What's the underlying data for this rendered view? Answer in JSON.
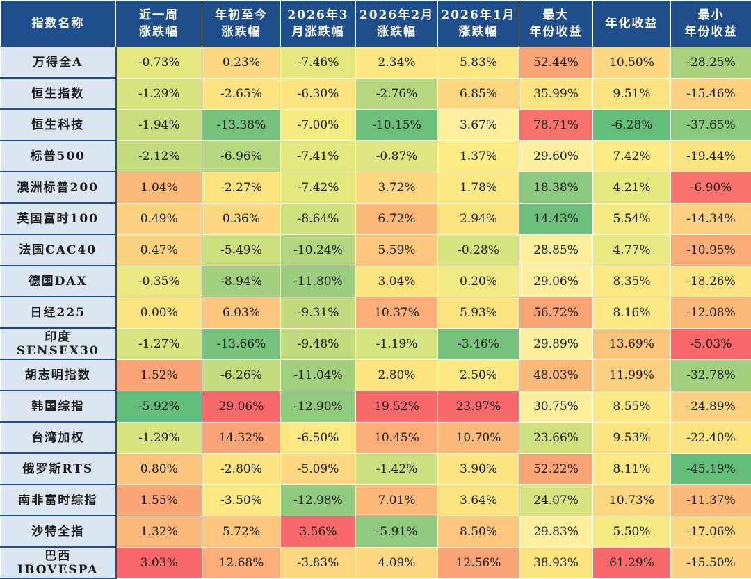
{
  "headers": [
    [
      "指数名称"
    ],
    [
      "近一周",
      "涨跌幅"
    ],
    [
      "年初至今",
      "涨跌幅"
    ],
    [
      "2026年3",
      "月涨跌幅"
    ],
    [
      "2026年2月",
      "涨跌幅"
    ],
    [
      "2026年1月",
      "涨跌幅"
    ],
    [
      "最大",
      "年份收益"
    ],
    [
      "年化收益"
    ],
    [
      "最小",
      "年份收益"
    ]
  ],
  "rows": [
    {
      "name": [
        "万得全A"
      ],
      "cells": [
        {
          "v": "-0.73%",
          "c": "#e3e87f"
        },
        {
          "v": "0.23%",
          "c": "#fed781"
        },
        {
          "v": "-7.46%",
          "c": "#e3e87f"
        },
        {
          "v": "2.34%",
          "c": "#fde683"
        },
        {
          "v": "5.83%",
          "c": "#fde683"
        },
        {
          "v": "52.44%",
          "c": "#fba577"
        },
        {
          "v": "10.50%",
          "c": "#fed781"
        },
        {
          "v": "-28.25%",
          "c": "#a9d27f"
        }
      ]
    },
    {
      "name": [
        "恒生指数"
      ],
      "cells": [
        {
          "v": "-1.29%",
          "c": "#d8e47f"
        },
        {
          "v": "-2.65%",
          "c": "#fee481"
        },
        {
          "v": "-6.30%",
          "c": "#fee481"
        },
        {
          "v": "-2.76%",
          "c": "#b6d67f"
        },
        {
          "v": "6.85%",
          "c": "#fed781"
        },
        {
          "v": "35.99%",
          "c": "#fee481"
        },
        {
          "v": "9.51%",
          "c": "#fee481"
        },
        {
          "v": "-15.46%",
          "c": "#fed280"
        }
      ]
    },
    {
      "name": [
        "恒生科技"
      ],
      "cells": [
        {
          "v": "-1.94%",
          "c": "#c8de7f"
        },
        {
          "v": "-13.38%",
          "c": "#77c27c"
        },
        {
          "v": "-7.00%",
          "c": "#f4eb83"
        },
        {
          "v": "-10.15%",
          "c": "#6ebf7b"
        },
        {
          "v": "3.67%",
          "c": "#fff0a0"
        },
        {
          "v": "78.71%",
          "c": "#f8736d"
        },
        {
          "v": "-6.28%",
          "c": "#63be7b"
        },
        {
          "v": "-37.65%",
          "c": "#8cc97e"
        }
      ]
    },
    {
      "name": [
        "标普500"
      ],
      "cells": [
        {
          "v": "-2.12%",
          "c": "#c3dc7f"
        },
        {
          "v": "-6.96%",
          "c": "#b8d87f"
        },
        {
          "v": "-7.41%",
          "c": "#e3e87f"
        },
        {
          "v": "-0.87%",
          "c": "#e0e682"
        },
        {
          "v": "1.37%",
          "c": "#fdeb84"
        },
        {
          "v": "29.60%",
          "c": "#fff0a0"
        },
        {
          "v": "7.42%",
          "c": "#fdeb84"
        },
        {
          "v": "-19.44%",
          "c": "#fee481"
        }
      ]
    },
    {
      "name": [
        "澳洲标普200"
      ],
      "cells": [
        {
          "v": "1.04%",
          "c": "#fcb97a"
        },
        {
          "v": "-2.27%",
          "c": "#fee481"
        },
        {
          "v": "-7.42%",
          "c": "#e3e87f"
        },
        {
          "v": "3.72%",
          "c": "#fed781"
        },
        {
          "v": "1.78%",
          "c": "#fee884"
        },
        {
          "v": "18.38%",
          "c": "#8cc97e"
        },
        {
          "v": "4.21%",
          "c": "#e3e87f"
        },
        {
          "v": "-6.90%",
          "c": "#f8736d"
        }
      ]
    },
    {
      "name": [
        "英国富时100"
      ],
      "cells": [
        {
          "v": "0.49%",
          "c": "#fed280"
        },
        {
          "v": "0.36%",
          "c": "#fed781"
        },
        {
          "v": "-8.64%",
          "c": "#cfe07f"
        },
        {
          "v": "6.72%",
          "c": "#fcb97a"
        },
        {
          "v": "2.94%",
          "c": "#fee481"
        },
        {
          "v": "14.43%",
          "c": "#6ebf7b"
        },
        {
          "v": "5.54%",
          "c": "#f5e983"
        },
        {
          "v": "-14.34%",
          "c": "#fed280"
        }
      ]
    },
    {
      "name": [
        "法国CAC40"
      ],
      "cells": [
        {
          "v": "0.47%",
          "c": "#fed280"
        },
        {
          "v": "-5.49%",
          "c": "#cbdf7f"
        },
        {
          "v": "-10.24%",
          "c": "#b2d67f"
        },
        {
          "v": "5.59%",
          "c": "#fec57d"
        },
        {
          "v": "-0.28%",
          "c": "#d8e47f"
        },
        {
          "v": "28.85%",
          "c": "#fff0a0"
        },
        {
          "v": "4.77%",
          "c": "#e8e982"
        },
        {
          "v": "-10.95%",
          "c": "#fcac78"
        }
      ]
    },
    {
      "name": [
        "德国DAX"
      ],
      "cells": [
        {
          "v": "-0.35%",
          "c": "#ece984"
        },
        {
          "v": "-8.94%",
          "c": "#a3d07e"
        },
        {
          "v": "-11.80%",
          "c": "#9ccd7e"
        },
        {
          "v": "3.04%",
          "c": "#fee481"
        },
        {
          "v": "0.20%",
          "c": "#f2ea84"
        },
        {
          "v": "29.06%",
          "c": "#fff0a0"
        },
        {
          "v": "8.35%",
          "c": "#fee884"
        },
        {
          "v": "-18.26%",
          "c": "#fee481"
        }
      ]
    },
    {
      "name": [
        "日经225"
      ],
      "cells": [
        {
          "v": "0.00%",
          "c": "#fee481"
        },
        {
          "v": "6.03%",
          "c": "#fec57d"
        },
        {
          "v": "-9.31%",
          "c": "#c2db7f"
        },
        {
          "v": "10.37%",
          "c": "#fcad78"
        },
        {
          "v": "5.93%",
          "c": "#fee481"
        },
        {
          "v": "56.72%",
          "c": "#fba577"
        },
        {
          "v": "8.16%",
          "c": "#fee884"
        },
        {
          "v": "-12.08%",
          "c": "#fcb97a"
        }
      ]
    },
    {
      "name": [
        "印度",
        "SENSEX30"
      ],
      "cells": [
        {
          "v": "-1.27%",
          "c": "#d8e47f"
        },
        {
          "v": "-13.66%",
          "c": "#77c27c"
        },
        {
          "v": "-9.48%",
          "c": "#c2db7f"
        },
        {
          "v": "-1.19%",
          "c": "#d5e381"
        },
        {
          "v": "-3.46%",
          "c": "#77c27c"
        },
        {
          "v": "29.89%",
          "c": "#fff0a0"
        },
        {
          "v": "13.69%",
          "c": "#fcc57d"
        },
        {
          "v": "-5.03%",
          "c": "#f8696b"
        }
      ]
    },
    {
      "name": [
        "胡志明指数"
      ],
      "cells": [
        {
          "v": "1.52%",
          "c": "#fba577"
        },
        {
          "v": "-6.26%",
          "c": "#c3dc7f"
        },
        {
          "v": "-11.04%",
          "c": "#a3d07e"
        },
        {
          "v": "2.80%",
          "c": "#fee481"
        },
        {
          "v": "2.50%",
          "c": "#fee884"
        },
        {
          "v": "48.03%",
          "c": "#fcb97a"
        },
        {
          "v": "11.99%",
          "c": "#fed280"
        },
        {
          "v": "-32.78%",
          "c": "#a3d07e"
        }
      ]
    },
    {
      "name": [
        "韩国综指"
      ],
      "cells": [
        {
          "v": "-5.92%",
          "c": "#63be7b"
        },
        {
          "v": "29.06%",
          "c": "#f8696b"
        },
        {
          "v": "-12.90%",
          "c": "#90ca7e"
        },
        {
          "v": "19.52%",
          "c": "#f8696b"
        },
        {
          "v": "23.97%",
          "c": "#f8696b"
        },
        {
          "v": "30.75%",
          "c": "#fff0a0"
        },
        {
          "v": "8.55%",
          "c": "#fee884"
        },
        {
          "v": "-24.89%",
          "c": "#fed280"
        }
      ]
    },
    {
      "name": [
        "台湾加权"
      ],
      "cells": [
        {
          "v": "-1.29%",
          "c": "#d8e47f"
        },
        {
          "v": "14.32%",
          "c": "#fba577"
        },
        {
          "v": "-6.50%",
          "c": "#fee884"
        },
        {
          "v": "10.45%",
          "c": "#fcad78"
        },
        {
          "v": "10.70%",
          "c": "#fcb97a"
        },
        {
          "v": "23.66%",
          "c": "#cfe07f"
        },
        {
          "v": "9.53%",
          "c": "#fee481"
        },
        {
          "v": "-22.40%",
          "c": "#fee481"
        }
      ]
    },
    {
      "name": [
        "俄罗斯RTS"
      ],
      "cells": [
        {
          "v": "0.80%",
          "c": "#fcc57d"
        },
        {
          "v": "-2.80%",
          "c": "#fee481"
        },
        {
          "v": "-5.09%",
          "c": "#fed781"
        },
        {
          "v": "-1.42%",
          "c": "#cbe081"
        },
        {
          "v": "3.90%",
          "c": "#fee481"
        },
        {
          "v": "52.22%",
          "c": "#fba577"
        },
        {
          "v": "8.11%",
          "c": "#fee884"
        },
        {
          "v": "-45.19%",
          "c": "#63be7b"
        }
      ]
    },
    {
      "name": [
        "南非富时综指"
      ],
      "cells": [
        {
          "v": "1.55%",
          "c": "#fba577"
        },
        {
          "v": "-3.50%",
          "c": "#fee884"
        },
        {
          "v": "-12.98%",
          "c": "#90ca7e"
        },
        {
          "v": "7.01%",
          "c": "#fcb97a"
        },
        {
          "v": "3.64%",
          "c": "#fee481"
        },
        {
          "v": "24.07%",
          "c": "#d8e47f"
        },
        {
          "v": "10.73%",
          "c": "#fed781"
        },
        {
          "v": "-11.37%",
          "c": "#fcb97a"
        }
      ]
    },
    {
      "name": [
        "沙特全指"
      ],
      "cells": [
        {
          "v": "1.32%",
          "c": "#fcb97a"
        },
        {
          "v": "5.72%",
          "c": "#fec57d"
        },
        {
          "v": "3.56%",
          "c": "#f8696b"
        },
        {
          "v": "-5.91%",
          "c": "#90ca7e"
        },
        {
          "v": "8.50%",
          "c": "#fec57d"
        },
        {
          "v": "29.83%",
          "c": "#fff0a0"
        },
        {
          "v": "5.50%",
          "c": "#f5e983"
        },
        {
          "v": "-17.06%",
          "c": "#fed781"
        }
      ]
    },
    {
      "name": [
        "巴西",
        "IBOVESPA"
      ],
      "cells": [
        {
          "v": "3.03%",
          "c": "#f8696b"
        },
        {
          "v": "12.68%",
          "c": "#fcad78"
        },
        {
          "v": "-3.83%",
          "c": "#fed781"
        },
        {
          "v": "4.09%",
          "c": "#fed781"
        },
        {
          "v": "12.56%",
          "c": "#fba577"
        },
        {
          "v": "38.93%",
          "c": "#fee481"
        },
        {
          "v": "61.29%",
          "c": "#f8696b"
        },
        {
          "v": "-15.50%",
          "c": "#fed280"
        }
      ]
    }
  ]
}
